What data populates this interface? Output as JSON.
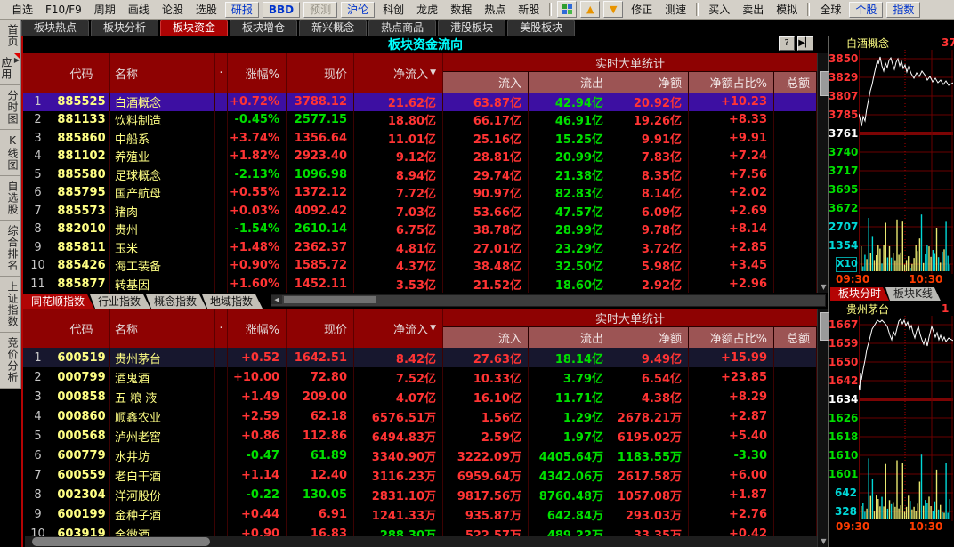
{
  "colors": {
    "up": "#ff3434",
    "down": "#00e000",
    "code_yellow": "#ffff84",
    "cyan": "#00d8d8",
    "title_cyan": "#00ffff",
    "header_bg": "#8e0202",
    "subheader_bg": "#9c5454",
    "selected_bg": "#3d0fa2",
    "tab_active_bg": "#b00505",
    "time_orange": "#ff3c00"
  },
  "icons": {
    "help": "?",
    "collapse_right": "▶▏",
    "sort_desc": "▼",
    "scroll_left": "◀",
    "scroll_down": "▼",
    "app_launch": "▶",
    "menu_up_arrow": "▲",
    "menu_down_arrow": "▼"
  },
  "menubar": {
    "items": [
      {
        "label": "自选",
        "kind": "text"
      },
      {
        "label": "F10/F9",
        "kind": "text"
      },
      {
        "label": "周期",
        "kind": "text"
      },
      {
        "label": "画线",
        "kind": "text"
      },
      {
        "label": "论股",
        "kind": "text"
      },
      {
        "label": "选股",
        "kind": "text"
      },
      {
        "label": "研报",
        "kind": "blue"
      },
      {
        "label": "BBD",
        "kind": "blue-bold"
      },
      {
        "label": "预测",
        "kind": "grey"
      },
      {
        "label": "沪伦",
        "kind": "blue"
      },
      {
        "label": "科创",
        "kind": "text"
      },
      {
        "label": "龙虎",
        "kind": "text"
      },
      {
        "label": "数据",
        "kind": "text"
      },
      {
        "label": "热点",
        "kind": "text"
      },
      {
        "label": "新股",
        "kind": "text"
      },
      {
        "kind": "sep"
      },
      {
        "kind": "icon",
        "icon": "chart-grid-icon"
      },
      {
        "kind": "icon",
        "icon": "arrow-up-icon"
      },
      {
        "kind": "icon",
        "icon": "arrow-down-icon"
      },
      {
        "label": "修正",
        "kind": "text"
      },
      {
        "label": "测速",
        "kind": "text"
      },
      {
        "kind": "sep"
      },
      {
        "label": "买入",
        "kind": "text"
      },
      {
        "label": "卖出",
        "kind": "text"
      },
      {
        "label": "模拟",
        "kind": "text"
      },
      {
        "kind": "sep"
      },
      {
        "label": "全球",
        "kind": "text"
      },
      {
        "label": "个股",
        "kind": "blue"
      },
      {
        "label": "指数",
        "kind": "blue"
      }
    ]
  },
  "toptabs": [
    {
      "label": "板块热点",
      "active": false
    },
    {
      "label": "板块分析",
      "active": false
    },
    {
      "label": "板块资金",
      "active": true
    },
    {
      "label": "板块增仓",
      "active": false
    },
    {
      "label": "新兴概念",
      "active": false
    },
    {
      "label": "热点商品",
      "active": false
    },
    {
      "label": "港股板块",
      "active": false
    },
    {
      "label": "美股板块",
      "active": false
    }
  ],
  "window": {
    "title": "板块资金流向"
  },
  "sidebar": {
    "items": [
      {
        "label": "首页",
        "icon": ""
      },
      {
        "label": "应用",
        "icon": "app_launch"
      },
      {
        "label": "分时图",
        "icon": ""
      },
      {
        "label": "K线图",
        "icon": ""
      },
      {
        "label": "自选股",
        "icon": ""
      },
      {
        "label": "综合排名",
        "icon": ""
      },
      {
        "label": "上证指数",
        "icon": ""
      },
      {
        "label": "竞价分析",
        "icon": ""
      }
    ]
  },
  "headers": {
    "code": "代码",
    "name": "名称",
    "dot": "·",
    "chg": "涨幅%",
    "price": "现价",
    "netin": "净流入",
    "group": "实时大单统计",
    "inflow": "流入",
    "outflow": "流出",
    "net": "净额",
    "ratio": "净额占比%",
    "total": "总额"
  },
  "table1": {
    "rows": [
      [
        "1",
        "885525",
        "白酒概念",
        "+0.72%",
        "u",
        "3788.12",
        "u",
        "21.62亿",
        "u",
        "63.87亿",
        "42.94亿",
        "20.92亿",
        "u",
        "+10.23",
        "u",
        true
      ],
      [
        "2",
        "881133",
        "饮料制造",
        "-0.45%",
        "d",
        "2577.15",
        "d",
        "18.80亿",
        "u",
        "66.17亿",
        "46.91亿",
        "19.26亿",
        "u",
        "+8.33",
        "u",
        false
      ],
      [
        "3",
        "885860",
        "中船系",
        "+3.74%",
        "u",
        "1356.64",
        "u",
        "11.01亿",
        "u",
        "25.16亿",
        "15.25亿",
        "9.91亿",
        "u",
        "+9.91",
        "u",
        false
      ],
      [
        "4",
        "881102",
        "养殖业",
        "+1.82%",
        "u",
        "2923.40",
        "u",
        "9.12亿",
        "u",
        "28.81亿",
        "20.99亿",
        "7.83亿",
        "u",
        "+7.24",
        "u",
        false
      ],
      [
        "5",
        "885580",
        "足球概念",
        "-2.13%",
        "d",
        "1096.98",
        "d",
        "8.94亿",
        "u",
        "29.74亿",
        "21.38亿",
        "8.35亿",
        "u",
        "+7.56",
        "u",
        false
      ],
      [
        "6",
        "885795",
        "国产航母",
        "+0.55%",
        "u",
        "1372.12",
        "u",
        "7.72亿",
        "u",
        "90.97亿",
        "82.83亿",
        "8.14亿",
        "u",
        "+2.02",
        "u",
        false
      ],
      [
        "7",
        "885573",
        "猪肉",
        "+0.03%",
        "u",
        "4092.42",
        "u",
        "7.03亿",
        "u",
        "53.66亿",
        "47.57亿",
        "6.09亿",
        "u",
        "+2.69",
        "u",
        false
      ],
      [
        "8",
        "882010",
        "贵州",
        "-1.54%",
        "d",
        "2610.14",
        "d",
        "6.75亿",
        "u",
        "38.78亿",
        "28.99亿",
        "9.78亿",
        "u",
        "+8.14",
        "u",
        false
      ],
      [
        "9",
        "885811",
        "玉米",
        "+1.48%",
        "u",
        "2362.37",
        "u",
        "4.81亿",
        "u",
        "27.01亿",
        "23.29亿",
        "3.72亿",
        "u",
        "+2.85",
        "u",
        false
      ],
      [
        "10",
        "885426",
        "海工装备",
        "+0.90%",
        "u",
        "1585.72",
        "u",
        "4.37亿",
        "u",
        "38.48亿",
        "32.50亿",
        "5.98亿",
        "u",
        "+3.45",
        "u",
        false
      ],
      [
        "11",
        "885877",
        "转基因",
        "+1.60%",
        "u",
        "1452.11",
        "u",
        "3.53亿",
        "u",
        "21.52亿",
        "18.60亿",
        "2.92亿",
        "u",
        "+2.96",
        "u",
        false
      ]
    ]
  },
  "midtabs": [
    {
      "label": "同花顺指数",
      "active": true
    },
    {
      "label": "行业指数",
      "active": false
    },
    {
      "label": "概念指数",
      "active": false
    },
    {
      "label": "地域指数",
      "active": false
    }
  ],
  "table2": {
    "rows": [
      [
        "1",
        "600519",
        "贵州茅台",
        "+0.52",
        "u",
        "1642.51",
        "u",
        "8.42亿",
        "u",
        "27.63亿",
        "18.14亿",
        "9.49亿",
        "u",
        "+15.99",
        "u",
        true
      ],
      [
        "2",
        "000799",
        "酒鬼酒",
        "+10.00",
        "u",
        "72.80",
        "u",
        "7.52亿",
        "u",
        "10.33亿",
        "3.79亿",
        "6.54亿",
        "u",
        "+23.85",
        "u",
        false
      ],
      [
        "3",
        "000858",
        "五 粮 液",
        "+1.49",
        "u",
        "209.00",
        "u",
        "4.07亿",
        "u",
        "16.10亿",
        "11.71亿",
        "4.38亿",
        "u",
        "+8.29",
        "u",
        false
      ],
      [
        "4",
        "000860",
        "顺鑫农业",
        "+2.59",
        "u",
        "62.18",
        "u",
        "6576.51万",
        "u",
        "1.56亿",
        "1.29亿",
        "2678.21万",
        "u",
        "+2.87",
        "u",
        false
      ],
      [
        "5",
        "000568",
        "泸州老窖",
        "+0.86",
        "u",
        "112.86",
        "u",
        "6494.83万",
        "u",
        "2.59亿",
        "1.97亿",
        "6195.02万",
        "u",
        "+5.40",
        "u",
        false
      ],
      [
        "6",
        "600779",
        "水井坊",
        "-0.47",
        "d",
        "61.89",
        "d",
        "3340.90万",
        "u",
        "3222.09万",
        "4405.64万",
        "1183.55万",
        "d",
        "-3.30",
        "d",
        false
      ],
      [
        "7",
        "600559",
        "老白干酒",
        "+1.14",
        "u",
        "12.40",
        "u",
        "3116.23万",
        "u",
        "6959.64万",
        "4342.06万",
        "2617.58万",
        "u",
        "+6.00",
        "u",
        false
      ],
      [
        "8",
        "002304",
        "洋河股份",
        "-0.22",
        "d",
        "130.05",
        "d",
        "2831.10万",
        "u",
        "9817.56万",
        "8760.48万",
        "1057.08万",
        "u",
        "+1.87",
        "u",
        false
      ],
      [
        "9",
        "600199",
        "金种子酒",
        "+0.44",
        "u",
        "6.91",
        "u",
        "1241.33万",
        "u",
        "935.87万",
        "642.84万",
        "293.03万",
        "u",
        "+2.76",
        "u",
        false
      ],
      [
        "10",
        "603919",
        "金徽酒",
        "+0.90",
        "u",
        "16.83",
        "u",
        "288.30万",
        "d",
        "522.57万",
        "489.22万",
        "33.35万",
        "u",
        "+0.42",
        "u",
        false
      ]
    ]
  },
  "right_panel": {
    "top_chart": {
      "title": "白酒概念",
      "clipped_price": "37",
      "price_labels": [
        [
          "3850",
          "u"
        ],
        [
          "3829",
          "u"
        ],
        [
          "3807",
          "u"
        ],
        [
          "3785",
          "u"
        ],
        [
          "3761",
          "flat"
        ],
        [
          "3740",
          "d"
        ],
        [
          "3717",
          "d"
        ],
        [
          "3695",
          "d"
        ],
        [
          "3672",
          "d"
        ]
      ],
      "volume_labels": [
        "2707",
        "1354"
      ],
      "scale_label": "X10",
      "times": [
        "09:30",
        "10:30"
      ]
    },
    "chart_tabs": [
      {
        "label": "板块分时",
        "active": true
      },
      {
        "label": "板块K线",
        "active": false
      }
    ],
    "bottom_chart": {
      "title": "贵州茅台",
      "clipped_price": "1",
      "price_labels": [
        [
          "1667",
          "u"
        ],
        [
          "1659",
          "u"
        ],
        [
          "1650",
          "u"
        ],
        [
          "1642",
          "u"
        ],
        [
          "1634",
          "flat"
        ],
        [
          "1626",
          "d"
        ],
        [
          "1618",
          "d"
        ],
        [
          "1610",
          "d"
        ],
        [
          "1601",
          "d"
        ]
      ],
      "volume_labels": [
        "642",
        "328"
      ],
      "scale_label": "",
      "times": [
        "09:30",
        "10:30"
      ]
    }
  }
}
